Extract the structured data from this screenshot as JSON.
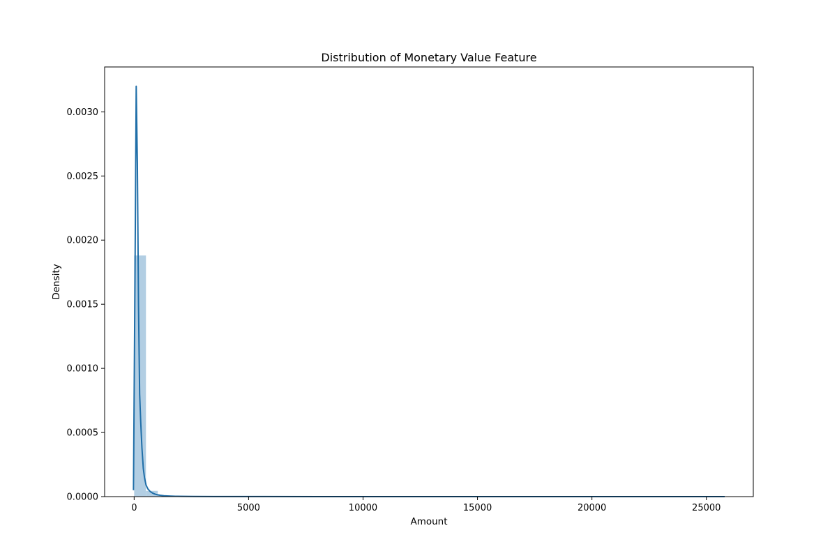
{
  "chart_data": {
    "type": "histogram",
    "title": "Distribution of Monetary Value Feature",
    "xlabel": "Amount",
    "ylabel": "Density",
    "xlim": [
      -1290,
      27050
    ],
    "ylim": [
      0,
      0.00335
    ],
    "xticks": [
      0,
      5000,
      10000,
      15000,
      20000,
      25000
    ],
    "xtick_labels": [
      "0",
      "5000",
      "10000",
      "15000",
      "20000",
      "25000"
    ],
    "yticks": [
      0,
      0.0005,
      0.001,
      0.0015,
      0.002,
      0.0025,
      0.003
    ],
    "ytick_labels": [
      "0.0000",
      "0.0005",
      "0.0010",
      "0.0015",
      "0.0020",
      "0.0025",
      "0.0030"
    ],
    "grid": false,
    "legend": "none",
    "series": [
      {
        "kind": "histogram",
        "color": "#aecbe2",
        "bins": [
          {
            "x0": 0,
            "x1": 516,
            "density": 0.00188
          },
          {
            "x0": 516,
            "x1": 1032,
            "density": 4.5e-05
          },
          {
            "x0": 1032,
            "x1": 1548,
            "density": 1e-05
          },
          {
            "x0": 1548,
            "x1": 2064,
            "density": 4e-06
          },
          {
            "x0": 2064,
            "x1": 2580,
            "density": 2e-06
          }
        ]
      },
      {
        "kind": "kde",
        "color": "#1f6ea8",
        "x": [
          -30,
          40,
          90,
          140,
          190,
          240,
          290,
          340,
          400,
          450,
          520,
          600,
          700,
          800,
          900,
          1000,
          1150,
          1300,
          1500,
          1800,
          2200,
          2600,
          3500,
          5000,
          8000,
          12000,
          16000,
          20000,
          24000,
          25800
        ],
        "y": [
          5e-05,
          0.0018,
          0.0032,
          0.0026,
          0.0015,
          0.0008,
          0.00057,
          0.00038,
          0.00022,
          0.00015,
          9e-05,
          6e-05,
          4e-05,
          2.8e-05,
          2e-05,
          1.5e-05,
          1e-05,
          7e-06,
          5e-06,
          3e-06,
          2e-06,
          1.5e-06,
          1e-06,
          5e-07,
          3e-07,
          2e-07,
          1e-07,
          1e-07,
          1e-07,
          5e-08
        ]
      }
    ]
  }
}
